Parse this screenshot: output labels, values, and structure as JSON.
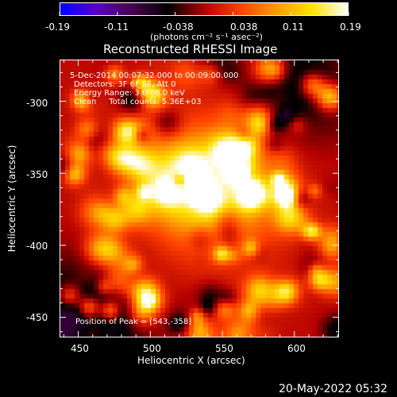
{
  "colorbar": {
    "colors": [
      "#0000ff",
      "#5a00c8",
      "#4a0050",
      "#000000",
      "#b40000",
      "#ff4000",
      "#ff9a00",
      "#ffe200",
      "#ffffff"
    ],
    "tick_labels": [
      "-0.19",
      "-0.11",
      "-0.038",
      "0.038",
      "0.11",
      "0.19"
    ],
    "units": "(photons cm⁻² s⁻¹ asec⁻²)"
  },
  "plot": {
    "title": "Reconstructed RHESSI Image",
    "info_lines": [
      "5-Dec-2014 00:07:32.000 to 00:09:00.000",
      "Detectors: 3F 6F 9F, Att 0",
      "Energy Range: 3.0 - 6.0 keV",
      "Clean     Total counts: 5.36E+03"
    ],
    "peak_text": "Position of Peak = [543,-358]",
    "timestamp": "20-May-2022 05:32"
  },
  "chart_data": {
    "type": "heatmap",
    "title": "Reconstructed RHESSI Image",
    "xlabel": "Heliocentric X (arcsec)",
    "ylabel": "Heliocentric Y (arcsec)",
    "xlim": [
      437,
      631
    ],
    "ylim": [
      -464,
      -271
    ],
    "x_ticks": [
      450,
      500,
      550,
      600
    ],
    "y_ticks": [
      -300,
      -350,
      -400,
      -450
    ],
    "value_range": [
      -0.19,
      0.19
    ],
    "peak": [
      543,
      -358
    ]
  }
}
